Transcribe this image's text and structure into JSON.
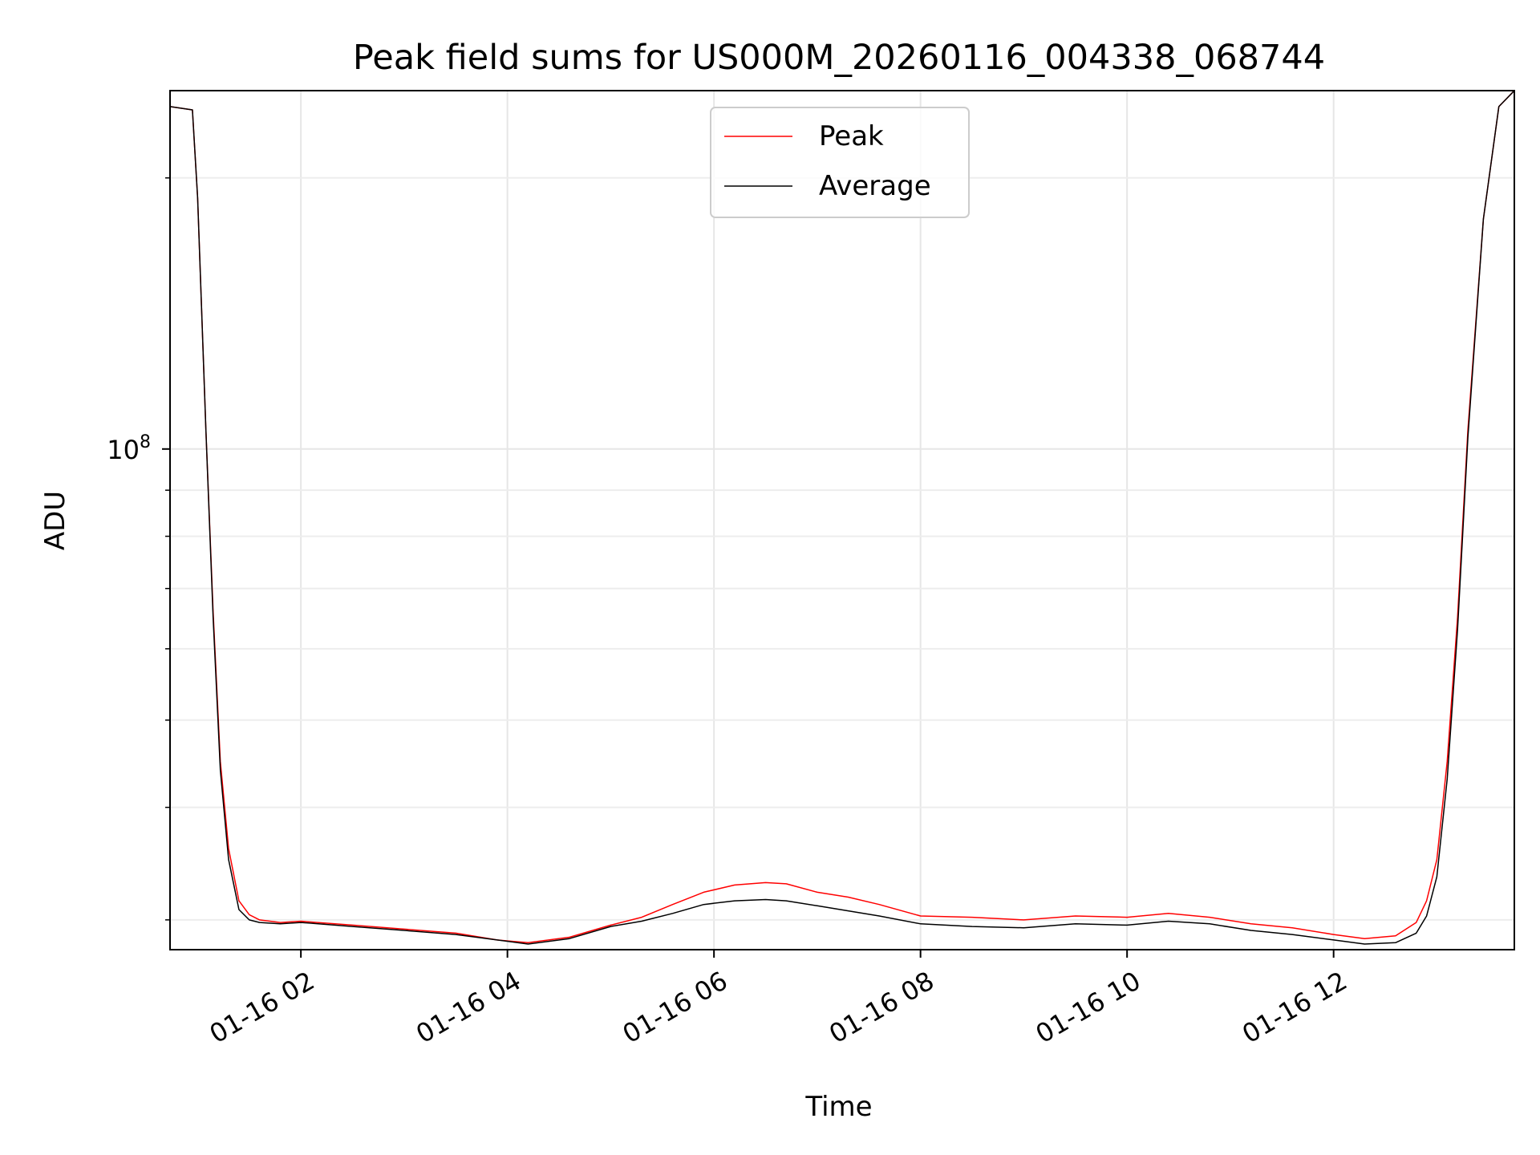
{
  "chart_data": {
    "type": "line",
    "title": "Peak field sums for US000M_20260116_004338_068744",
    "xlabel": "Time",
    "ylabel": "ADU",
    "yscale": "log",
    "grid": true,
    "legend_position": "upper-center",
    "x_unit": "hours since 2026-01-16 00:00",
    "xlim": [
      0.733,
      13.75
    ],
    "ylim": [
      27800000,
      250000000
    ],
    "x_ticks": [
      {
        "value": 2,
        "label": "01-16 02"
      },
      {
        "value": 4,
        "label": "01-16 04"
      },
      {
        "value": 6,
        "label": "01-16 06"
      },
      {
        "value": 8,
        "label": "01-16 08"
      },
      {
        "value": 10,
        "label": "01-16 10"
      },
      {
        "value": 12,
        "label": "01-16 12"
      }
    ],
    "y_major_ticks": [
      {
        "value": 100000000,
        "base": "10",
        "exponent": "8"
      }
    ],
    "y_minor_ticks": [
      30000000,
      40000000,
      50000000,
      60000000,
      70000000,
      80000000,
      90000000,
      200000000
    ],
    "series": [
      {
        "name": "Peak",
        "color": "#ff0000",
        "x": [
          0.733,
          0.95,
          1.0,
          1.08,
          1.15,
          1.22,
          1.3,
          1.4,
          1.5,
          1.6,
          1.8,
          2.0,
          2.5,
          3.0,
          3.5,
          3.9,
          4.2,
          4.6,
          5.0,
          5.3,
          5.6,
          5.9,
          6.2,
          6.5,
          6.7,
          7.0,
          7.3,
          7.6,
          8.0,
          8.5,
          9.0,
          9.5,
          10.0,
          10.4,
          10.8,
          11.2,
          11.6,
          12.0,
          12.3,
          12.6,
          12.8,
          12.9,
          13.0,
          13.1,
          13.2,
          13.3,
          13.45,
          13.6,
          13.75
        ],
        "values": [
          240000000,
          238000000,
          190000000,
          105000000,
          66000000,
          45000000,
          36000000,
          31500000,
          30400000,
          30000000,
          29800000,
          29900000,
          29600000,
          29300000,
          29000000,
          28500000,
          28300000,
          28700000,
          29600000,
          30200000,
          31200000,
          32200000,
          32800000,
          33000000,
          32900000,
          32200000,
          31800000,
          31200000,
          30300000,
          30200000,
          30000000,
          30300000,
          30200000,
          30500000,
          30200000,
          29700000,
          29400000,
          28900000,
          28600000,
          28800000,
          29800000,
          31500000,
          35000000,
          45000000,
          65000000,
          105000000,
          180000000,
          240000000,
          250000000
        ]
      },
      {
        "name": "Average",
        "color": "#000000",
        "x": [
          0.733,
          0.95,
          1.0,
          1.08,
          1.15,
          1.22,
          1.3,
          1.4,
          1.5,
          1.6,
          1.8,
          2.0,
          2.5,
          3.0,
          3.5,
          3.9,
          4.2,
          4.6,
          5.0,
          5.3,
          5.6,
          5.9,
          6.2,
          6.5,
          6.7,
          7.0,
          7.3,
          7.6,
          8.0,
          8.5,
          9.0,
          9.5,
          10.0,
          10.4,
          10.8,
          11.2,
          11.6,
          12.0,
          12.3,
          12.6,
          12.8,
          12.9,
          13.0,
          13.1,
          13.2,
          13.3,
          13.45,
          13.6,
          13.75
        ],
        "values": [
          240000000,
          238000000,
          190000000,
          105000000,
          65000000,
          44000000,
          35000000,
          30800000,
          30000000,
          29800000,
          29700000,
          29800000,
          29500000,
          29200000,
          28900000,
          28500000,
          28200000,
          28600000,
          29500000,
          29900000,
          30500000,
          31200000,
          31500000,
          31600000,
          31500000,
          31100000,
          30700000,
          30300000,
          29700000,
          29500000,
          29400000,
          29700000,
          29600000,
          29900000,
          29700000,
          29200000,
          28900000,
          28500000,
          28200000,
          28300000,
          29000000,
          30300000,
          33500000,
          43000000,
          63000000,
          103000000,
          180000000,
          240000000,
          250000000
        ]
      }
    ]
  }
}
